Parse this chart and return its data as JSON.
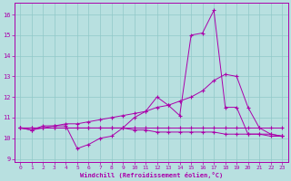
{
  "xlabel": "Windchill (Refroidissement éolien,°C)",
  "background_color": "#b8e0e0",
  "line_color": "#aa00aa",
  "grid_color": "#90c8c8",
  "spine_color": "#aa00aa",
  "xlim_min": -0.5,
  "xlim_max": 23.5,
  "ylim_min": 8.85,
  "ylim_max": 16.55,
  "yticks": [
    9,
    10,
    11,
    12,
    13,
    14,
    15,
    16
  ],
  "xticks": [
    0,
    1,
    2,
    3,
    4,
    5,
    6,
    7,
    8,
    9,
    10,
    11,
    12,
    13,
    14,
    15,
    16,
    17,
    18,
    19,
    20,
    21,
    22,
    23
  ],
  "lines": [
    [
      10.5,
      10.4,
      10.6,
      10.6,
      10.6,
      9.5,
      9.7,
      10.0,
      10.1,
      10.5,
      11.0,
      11.3,
      12.0,
      11.6,
      11.1,
      15.0,
      15.1,
      16.2,
      11.5,
      11.5,
      10.2,
      10.2,
      10.2,
      10.1
    ],
    [
      10.5,
      10.5,
      10.5,
      10.5,
      10.5,
      10.5,
      10.5,
      10.5,
      10.5,
      10.5,
      10.5,
      10.5,
      10.5,
      10.5,
      10.5,
      10.5,
      10.5,
      10.5,
      10.5,
      10.5,
      10.5,
      10.5,
      10.5,
      10.5
    ],
    [
      10.5,
      10.4,
      10.5,
      10.6,
      10.7,
      10.7,
      10.8,
      10.9,
      11.0,
      11.1,
      11.2,
      11.3,
      11.5,
      11.6,
      11.8,
      12.0,
      12.3,
      12.8,
      13.1,
      13.0,
      11.5,
      10.5,
      10.2,
      10.1
    ],
    [
      10.5,
      10.5,
      10.5,
      10.5,
      10.5,
      10.5,
      10.5,
      10.5,
      10.5,
      10.5,
      10.4,
      10.4,
      10.3,
      10.3,
      10.3,
      10.3,
      10.3,
      10.3,
      10.2,
      10.2,
      10.2,
      10.2,
      10.1,
      10.1
    ]
  ]
}
